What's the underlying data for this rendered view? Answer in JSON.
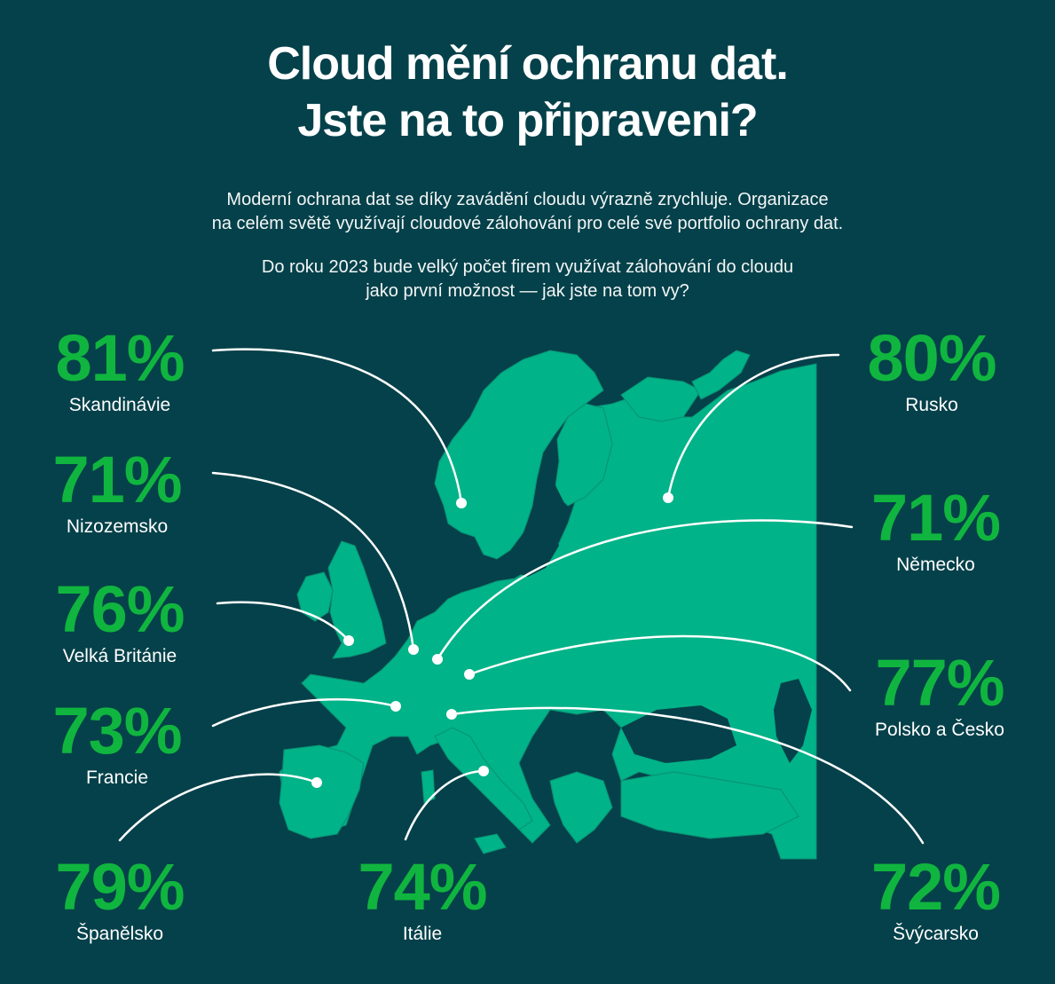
{
  "header": {
    "title_line1": "Cloud mění ochranu dat.",
    "title_line2": "Jste na to připraveni?"
  },
  "intro": {
    "p1_line1": "Moderní ochrana dat se díky zavádění cloudu výrazně zrychluje. Organizace",
    "p1_line2": "na celém světě využívají cloudové zálohování pro celé své portfolio ochrany dat.",
    "p2_line1": "Do roku 2023 bude velký počet firem využívat zálohování do cloudu",
    "p2_line2": "jako první možnost — jak jste na tom vy?"
  },
  "stats": {
    "skandinavie": {
      "value": "81%",
      "label": "Skandinávie"
    },
    "nizozemsko": {
      "value": "71%",
      "label": "Nizozemsko"
    },
    "velka_britanie": {
      "value": "76%",
      "label": "Velká Británie"
    },
    "francie": {
      "value": "73%",
      "label": "Francie"
    },
    "spanelsko": {
      "value": "79%",
      "label": "Španělsko"
    },
    "italie": {
      "value": "74%",
      "label": "Itálie"
    },
    "svycarsko": {
      "value": "72%",
      "label": "Švýcarsko"
    },
    "rusko": {
      "value": "80%",
      "label": "Rusko"
    },
    "nemecko": {
      "value": "71%",
      "label": "Německo"
    },
    "polsko_cesko": {
      "value": "77%",
      "label": "Polsko a Česko"
    }
  },
  "colors": {
    "background": "#05414a",
    "map": "#00b388",
    "accent": "#10b53f",
    "text": "#ffffff"
  }
}
